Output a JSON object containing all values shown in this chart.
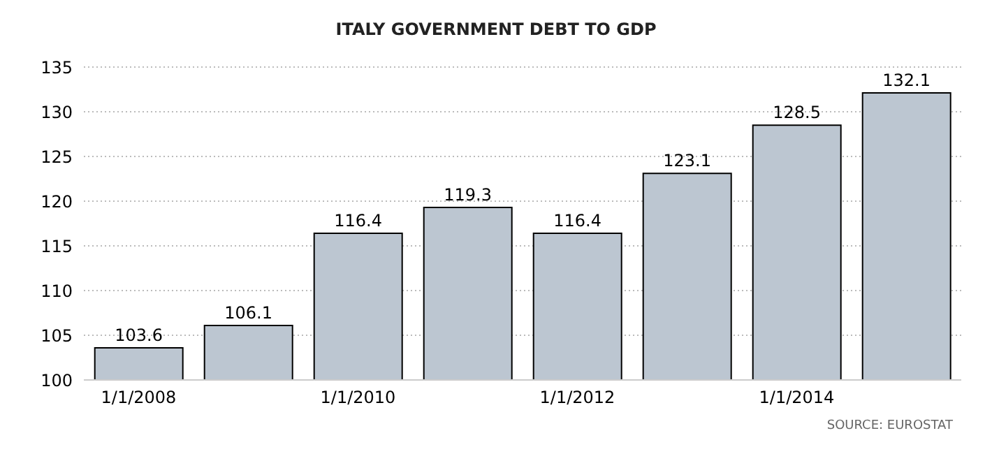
{
  "chart_data": {
    "type": "bar",
    "title": "ITALY GOVERNMENT DEBT TO GDP",
    "categories": [
      "1/1/2008",
      null,
      "1/1/2010",
      null,
      "1/1/2012",
      null,
      "1/1/2014",
      null
    ],
    "values": [
      103.6,
      106.1,
      116.4,
      119.3,
      116.4,
      123.1,
      128.5,
      132.1
    ],
    "color": "#bcc6d1",
    "ylim": [
      100,
      135
    ],
    "yticks": [
      100,
      105,
      110,
      115,
      120,
      125,
      130,
      135
    ],
    "grid": "y",
    "data_labels": true,
    "annotations": [
      "SOURCE: EUROSTAT"
    ]
  }
}
